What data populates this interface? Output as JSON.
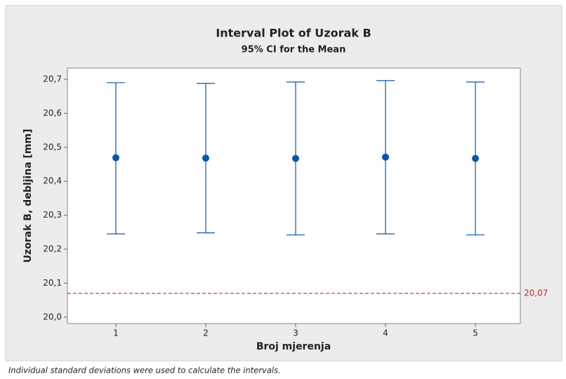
{
  "chart_data": {
    "type": "interval",
    "title": "Interval Plot of Uzorak B",
    "subtitle": "95% CI for the Mean",
    "x_label": "Broj mjerenja",
    "y_label": "Uzorak B, debljina [mm]",
    "footnote": "Individual standard deviations were used to calculate the intervals.",
    "categories": [
      "1",
      "2",
      "3",
      "4",
      "5"
    ],
    "series": [
      {
        "color": "#0b56a4",
        "values": [
          20.469,
          20.468,
          20.467,
          20.471,
          20.467
        ],
        "lower": [
          20.245,
          20.248,
          20.242,
          20.245,
          20.242
        ],
        "upper": [
          20.69,
          20.688,
          20.692,
          20.696,
          20.692
        ]
      }
    ],
    "reference_line": {
      "value": 20.07,
      "label": "20,07",
      "color": "#c0282d"
    },
    "ylim": [
      19.981,
      20.733
    ],
    "yticks": [
      {
        "value": 20.0,
        "label": "20,0"
      },
      {
        "value": 20.1,
        "label": "20,1"
      },
      {
        "value": 20.2,
        "label": "20,2"
      },
      {
        "value": 20.3,
        "label": "20,3"
      },
      {
        "value": 20.4,
        "label": "20,4"
      },
      {
        "value": 20.5,
        "label": "20,5"
      },
      {
        "value": 20.6,
        "label": "20,6"
      },
      {
        "value": 20.7,
        "label": "20,7"
      }
    ],
    "grid": false
  }
}
